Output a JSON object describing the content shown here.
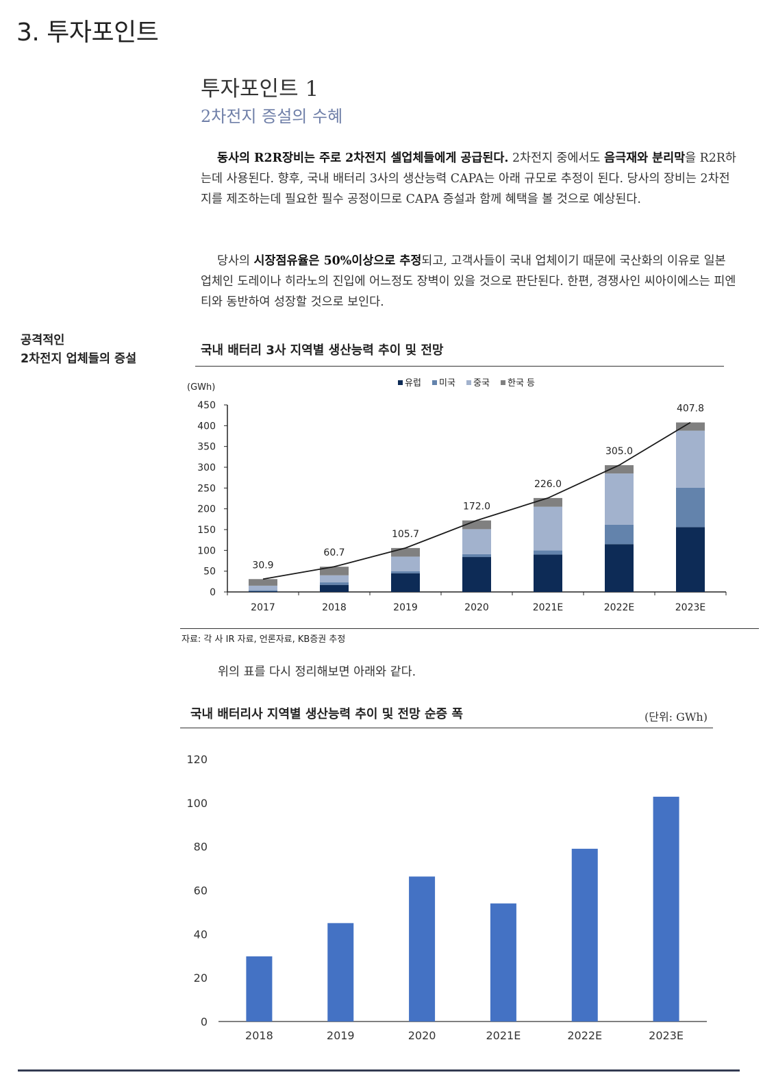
{
  "section": {
    "title": "3. 투자포인트"
  },
  "point": {
    "title": "투자포인트 1",
    "subtitle": "2차전지 증설의 수혜"
  },
  "paragraphs": {
    "p1": [
      {
        "text": "동사의 R2R장비는 주로 2차전지 셀업체들에게 공급된다.",
        "bold": true
      },
      {
        "text": " 2차전지 중에서도 ",
        "bold": false
      },
      {
        "text": "음극재와 분리막",
        "bold": true
      },
      {
        "text": "을 R2R하는데 사용된다. 향후, 국내 배터리 3사의 생산능력 CAPA는 아래 규모로 추정이 된다. 당사의 장비는 2차전지를 제조하는데 필요한 필수 공정이므로 CAPA 증설과 함께 혜택을 볼 것으로 예상된다.",
        "bold": false
      }
    ],
    "p2": [
      {
        "text": "당사의 ",
        "bold": false
      },
      {
        "text": "시장점유율은 50%이상으로 추정",
        "bold": true
      },
      {
        "text": "되고, 고객사들이 국내 업체이기 때문에 국산화의 이유로 일본 업체인 도레이나 히라노의 진입에 어느정도 장벽이 있을 것으로 판단된다. 한편, 경쟁사인 씨아이에스는 피엔티와 동반하여 성장할 것으로 보인다.",
        "bold": false
      }
    ]
  },
  "sidebar": {
    "line1": "공격적인",
    "line2": "2차전지 업체들의 증설"
  },
  "chart1": {
    "title": "국내 배터리 3사 지역별 생산능력 추이 및 전망",
    "source": "자료: 각 사 IR 자료, 언론자료, KB증권 추정"
  },
  "summary_text": "위의 표를 다시 정리해보면 아래와 같다.",
  "chart2": {
    "title": "국내 배터리사 지역별 생산능력 추이 및 전망 순증 폭",
    "unit": "(단위: GWh)"
  },
  "chart_data": [
    {
      "type": "bar",
      "stacked": true,
      "title": "국내 배터리 3사 지역별 생산능력 추이 및 전망",
      "ylabel": "(GWh)",
      "ylim": [
        0,
        450
      ],
      "yticks": [
        0,
        50,
        100,
        150,
        200,
        250,
        300,
        350,
        400,
        450
      ],
      "categories": [
        "2017",
        "2018",
        "2019",
        "2020",
        "2021E",
        "2022E",
        "2023E"
      ],
      "legend_position": "top",
      "series": [
        {
          "name": "유럽",
          "color": "#0d2b56",
          "values": [
            2,
            17,
            45,
            84,
            90,
            115,
            156
          ]
        },
        {
          "name": "미국",
          "color": "#6383ac",
          "values": [
            2,
            6,
            5,
            7,
            10,
            47,
            95
          ]
        },
        {
          "name": "중국",
          "color": "#a2b2cd",
          "values": [
            11,
            17,
            35,
            60,
            105,
            123,
            137
          ]
        },
        {
          "name": "한국 등",
          "color": "#808080",
          "values": [
            15.9,
            20.7,
            20.7,
            21,
            21,
            20,
            19.8
          ]
        }
      ],
      "totals_line": {
        "values": [
          30.9,
          60.7,
          105.7,
          172.0,
          226.0,
          305.0,
          407.8
        ],
        "labels": [
          "30.9",
          "60.7",
          "105.7",
          "172.0",
          "226.0",
          "305.0",
          "407.8"
        ],
        "color": "#1a1a1a"
      }
    },
    {
      "type": "bar",
      "title": "국내 배터리사 지역별 생산능력 추이 및 전망 순증 폭",
      "unit": "(단위: GWh)",
      "ylim": [
        0,
        120
      ],
      "yticks": [
        0,
        20,
        40,
        60,
        80,
        100,
        120
      ],
      "categories": [
        "2018",
        "2019",
        "2020",
        "2021E",
        "2022E",
        "2023E"
      ],
      "values": [
        29.8,
        45.0,
        66.3,
        54.0,
        79.0,
        102.8
      ],
      "color": "#4472c4"
    }
  ]
}
